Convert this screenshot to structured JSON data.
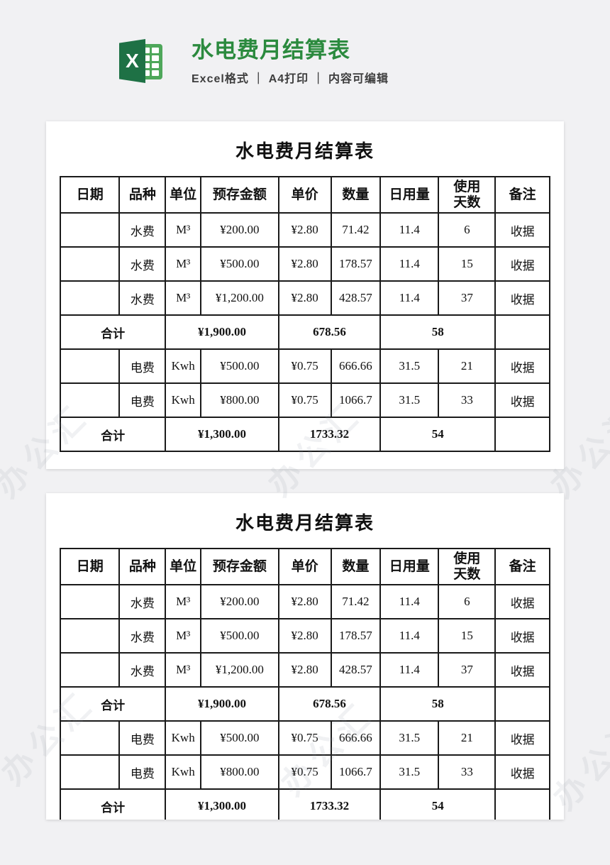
{
  "header": {
    "title": "水电费月结算表",
    "subtitle": "Excel格式 ｜ A4打印 ｜ 内容可编辑",
    "title_color": "#2b8a3e",
    "logo_dark_green": "#1e7145",
    "logo_light_green": "#4ea75a",
    "logo_letter": "X"
  },
  "watermark": {
    "text": "办公汇"
  },
  "table": {
    "title": "水电费月结算表",
    "columns": [
      "日期",
      "品种",
      "单位",
      "预存金额",
      "单价",
      "数量",
      "日用量",
      "使用\n天数",
      "备注"
    ],
    "col_widths_pct": [
      12.1,
      9.4,
      7.2,
      15.9,
      10.7,
      10.1,
      11.9,
      11.6,
      11.1
    ],
    "rows": [
      {
        "name": "water-row-1",
        "cells": [
          {
            "t": ""
          },
          {
            "t": "水费"
          },
          {
            "t": "M³",
            "small": true
          },
          {
            "t": "¥200.00"
          },
          {
            "t": "¥2.80"
          },
          {
            "t": "71.42"
          },
          {
            "t": "11.4"
          },
          {
            "t": "6"
          },
          {
            "t": "收据"
          }
        ]
      },
      {
        "name": "water-row-2",
        "cells": [
          {
            "t": ""
          },
          {
            "t": "水费"
          },
          {
            "t": "M³",
            "small": true
          },
          {
            "t": "¥500.00"
          },
          {
            "t": "¥2.80"
          },
          {
            "t": "178.57"
          },
          {
            "t": "11.4"
          },
          {
            "t": "15"
          },
          {
            "t": "收据"
          }
        ]
      },
      {
        "name": "water-row-3",
        "cells": [
          {
            "t": ""
          },
          {
            "t": "水费"
          },
          {
            "t": "M³",
            "small": true
          },
          {
            "t": "¥1,200.00"
          },
          {
            "t": "¥2.80"
          },
          {
            "t": "428.57"
          },
          {
            "t": "11.4"
          },
          {
            "t": "37"
          },
          {
            "t": "收据"
          }
        ]
      },
      {
        "name": "water-total-row",
        "cells": [
          {
            "t": "合计",
            "span": 2,
            "align": "left",
            "bold": true
          },
          {
            "t": "¥1,900.00",
            "span": 2,
            "align": "right",
            "bold": true
          },
          {
            "t": "678.56",
            "span": 2,
            "align": "right",
            "bold": true
          },
          {
            "t": "58",
            "span": 2,
            "align": "right",
            "bold": true
          },
          {
            "t": ""
          }
        ]
      },
      {
        "name": "electric-row-1",
        "cells": [
          {
            "t": ""
          },
          {
            "t": "电费"
          },
          {
            "t": "Kwh",
            "align": "left",
            "small": true
          },
          {
            "t": "¥500.00",
            "align": "right"
          },
          {
            "t": "¥0.75",
            "align": "right"
          },
          {
            "t": "666.66",
            "align": "right"
          },
          {
            "t": "31.5",
            "align": "right"
          },
          {
            "t": "21",
            "align": "right"
          },
          {
            "t": "收据",
            "align": "left"
          }
        ]
      },
      {
        "name": "electric-row-2",
        "cells": [
          {
            "t": ""
          },
          {
            "t": "电费"
          },
          {
            "t": "Kwh",
            "align": "left",
            "small": true
          },
          {
            "t": "¥800.00",
            "align": "right"
          },
          {
            "t": "¥0.75",
            "align": "right"
          },
          {
            "t": "1066.7",
            "align": "right"
          },
          {
            "t": "31.5",
            "align": "right"
          },
          {
            "t": "33",
            "align": "right"
          },
          {
            "t": "收据",
            "align": "left"
          }
        ]
      },
      {
        "name": "electric-total-row",
        "cells": [
          {
            "t": "合计",
            "span": 2,
            "align": "left",
            "bold": true
          },
          {
            "t": "¥1,300.00",
            "span": 2,
            "align": "right",
            "bold": true
          },
          {
            "t": "1733.32",
            "span": 2,
            "align": "right",
            "bold": true
          },
          {
            "t": "54",
            "span": 2,
            "align": "right",
            "bold": true
          },
          {
            "t": ""
          }
        ]
      }
    ]
  }
}
